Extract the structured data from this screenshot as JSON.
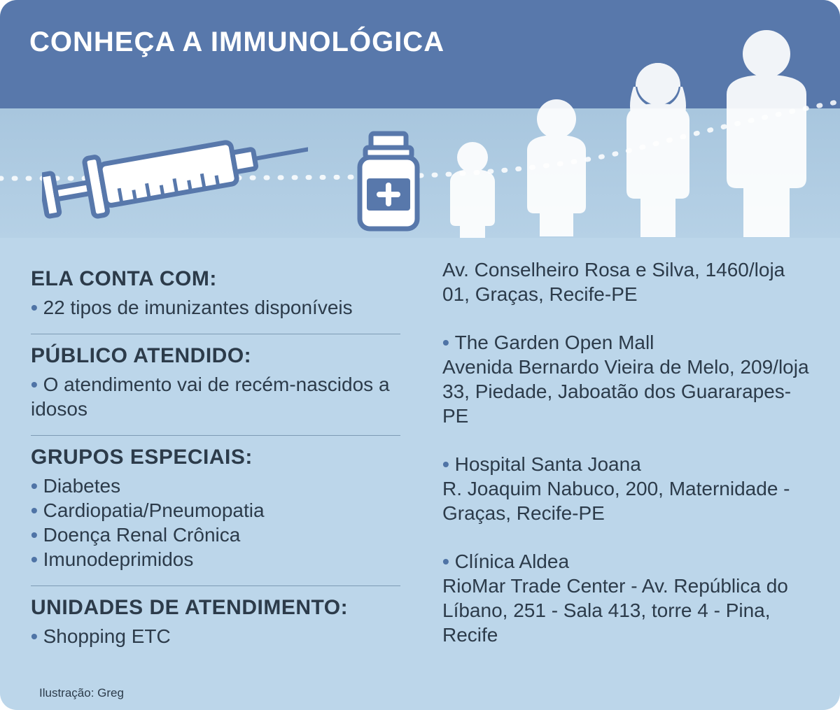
{
  "colors": {
    "header_bg": "#5878ab",
    "band_top": "#a8c6de",
    "band_bottom": "#b6d1e6",
    "body_bg": "#bcd6ea",
    "text": "#2c3b4a",
    "bullet": "#4f74a6",
    "divider": "#7e9bb4",
    "white": "#ffffff",
    "stroke": "#5878ab"
  },
  "typography": {
    "title_size": 40,
    "section_title_size": 30,
    "body_size": 28,
    "credit_size": 17
  },
  "header": {
    "title": "CONHEÇA A IMMUNOLÓGICA"
  },
  "left": {
    "sections": [
      {
        "title": "ELA CONTA COM:",
        "items": [
          "22 tipos de imunizantes disponíveis"
        ]
      },
      {
        "title": "PÚBLICO ATENDIDO:",
        "items": [
          "O atendimento vai de recém-nascidos a idosos"
        ]
      },
      {
        "title": "GRUPOS ESPECIAIS:",
        "items": [
          "Diabetes",
          "Cardiopatia/Pneumopatia",
          "Doença Renal Crônica",
          "Imunodeprimidos"
        ]
      },
      {
        "title": "UNIDADES DE ATENDIMENTO:",
        "items": [
          "Shopping ETC"
        ]
      }
    ]
  },
  "right": {
    "locations": [
      {
        "lead": "",
        "body": "Av. Conselheiro Rosa e Silva, 1460/loja 01, Graças, Recife-PE"
      },
      {
        "lead": "The Garden Open Mall",
        "body": "Avenida Bernardo Vieira de Melo, 209/loja 33, Piedade, Jaboatão dos Guararapes-PE"
      },
      {
        "lead": "Hospital Santa Joana",
        "body": "R. Joaquim Nabuco, 200, Maternidade - Graças, Recife-PE"
      },
      {
        "lead": "Clínica Aldea",
        "body": "RioMar Trade Center - Av. República do Líbano, 251 - Sala 413, torre 4 - Pina, Recife"
      }
    ]
  },
  "credit": "Ilustração: Greg"
}
